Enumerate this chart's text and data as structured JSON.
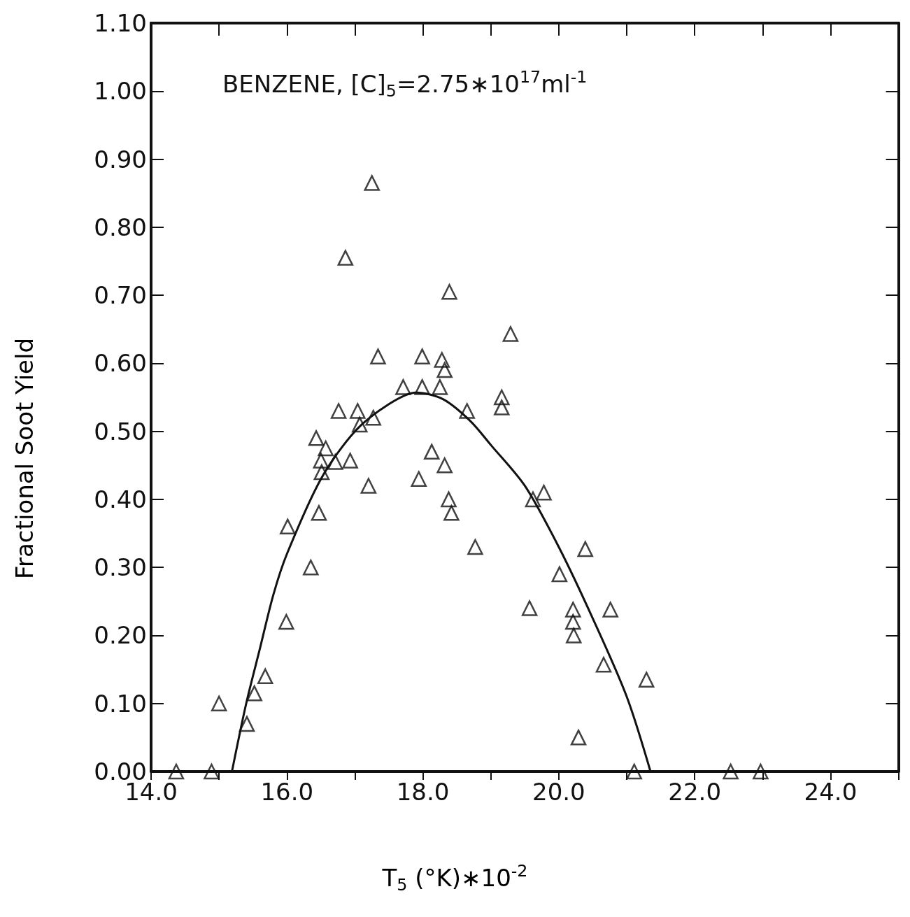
{
  "chart_data": {
    "type": "scatter",
    "xlabel": "T$_{5}$ (°K)∗10$^{-2}$",
    "ylabel": "Fractional Soot Yield",
    "annotations": [
      "BENZENE, [C]$_{5}$=2.75∗10$^{17}$ml$^{-1}$"
    ],
    "xlim": [
      14,
      25
    ],
    "xticks": [
      {
        "value": 14,
        "label": "14.0"
      },
      {
        "value": 15,
        "label": null
      },
      {
        "value": 16,
        "label": "16.0"
      },
      {
        "value": 17,
        "label": null
      },
      {
        "value": 18,
        "label": "18.0"
      },
      {
        "value": 19,
        "label": null
      },
      {
        "value": 20,
        "label": "20.0"
      },
      {
        "value": 21,
        "label": null
      },
      {
        "value": 22,
        "label": "22.0"
      },
      {
        "value": 23,
        "label": null
      },
      {
        "value": 24,
        "label": "24.0"
      },
      {
        "value": 25,
        "label": null
      }
    ],
    "ylim": [
      0,
      1.1
    ],
    "yticks": [
      {
        "value": 0,
        "label": "0.00"
      },
      {
        "value": 0.1,
        "label": "0.10"
      },
      {
        "value": 0.2,
        "label": "0.20"
      },
      {
        "value": 0.3,
        "label": "0.30"
      },
      {
        "value": 0.4,
        "label": "0.40"
      },
      {
        "value": 0.5,
        "label": "0.50"
      },
      {
        "value": 0.6,
        "label": "0.60"
      },
      {
        "value": 0.7,
        "label": "0.70"
      },
      {
        "value": 0.8,
        "label": "0.80"
      },
      {
        "value": 0.9,
        "label": "0.90"
      },
      {
        "value": 1.0,
        "label": "1.00"
      },
      {
        "value": 1.1,
        "label": "1.10"
      }
    ],
    "series": [
      {
        "type": "scatter",
        "marker": "triangle",
        "color": "#111111",
        "x": [
          14.37,
          14.89,
          15.0,
          15.41,
          15.52,
          15.68,
          15.99,
          16.01,
          16.35,
          16.43,
          16.47,
          16.5,
          16.51,
          16.57,
          16.71,
          16.76,
          16.86,
          16.93,
          17.04,
          17.07,
          17.2,
          17.25,
          17.27,
          17.34,
          17.71,
          17.94,
          17.99,
          17.99,
          18.13,
          18.25,
          18.28,
          18.32,
          18.32,
          18.38,
          18.39,
          18.42,
          18.65,
          18.77,
          19.16,
          19.16,
          19.29,
          19.57,
          19.62,
          19.78,
          20.01,
          20.21,
          20.21,
          20.22,
          20.29,
          20.39,
          20.66,
          20.76,
          21.11,
          21.29,
          22.53,
          22.97
        ],
        "values": [
          0,
          0,
          0.1,
          0.07,
          0.115,
          0.14,
          0.22,
          0.36,
          0.3,
          0.49,
          0.38,
          0.457,
          0.44,
          0.475,
          0.455,
          0.53,
          0.755,
          0.457,
          0.53,
          0.51,
          0.42,
          0.865,
          0.52,
          0.61,
          0.565,
          0.43,
          0.61,
          0.565,
          0.47,
          0.565,
          0.605,
          0.59,
          0.45,
          0.4,
          0.705,
          0.38,
          0.53,
          0.33,
          0.55,
          0.535,
          0.643,
          0.24,
          0.4,
          0.41,
          0.29,
          0.238,
          0.22,
          0.2,
          0.05,
          0.327,
          0.157,
          0.238,
          0,
          0.135,
          0,
          0
        ]
      },
      {
        "type": "line",
        "marker": "none",
        "line_style": "solid",
        "color": "#111111",
        "x": [
          15.19,
          15.4,
          15.6,
          15.8,
          16.0,
          16.5,
          17.0,
          17.5,
          17.9,
          18.3,
          18.7,
          19.0,
          19.5,
          20.0,
          20.5,
          21.0,
          21.35
        ],
        "values": [
          0,
          0.1,
          0.18,
          0.26,
          0.32,
          0.43,
          0.5,
          0.54,
          0.557,
          0.547,
          0.515,
          0.48,
          0.42,
          0.33,
          0.225,
          0.11,
          0
        ]
      }
    ]
  }
}
